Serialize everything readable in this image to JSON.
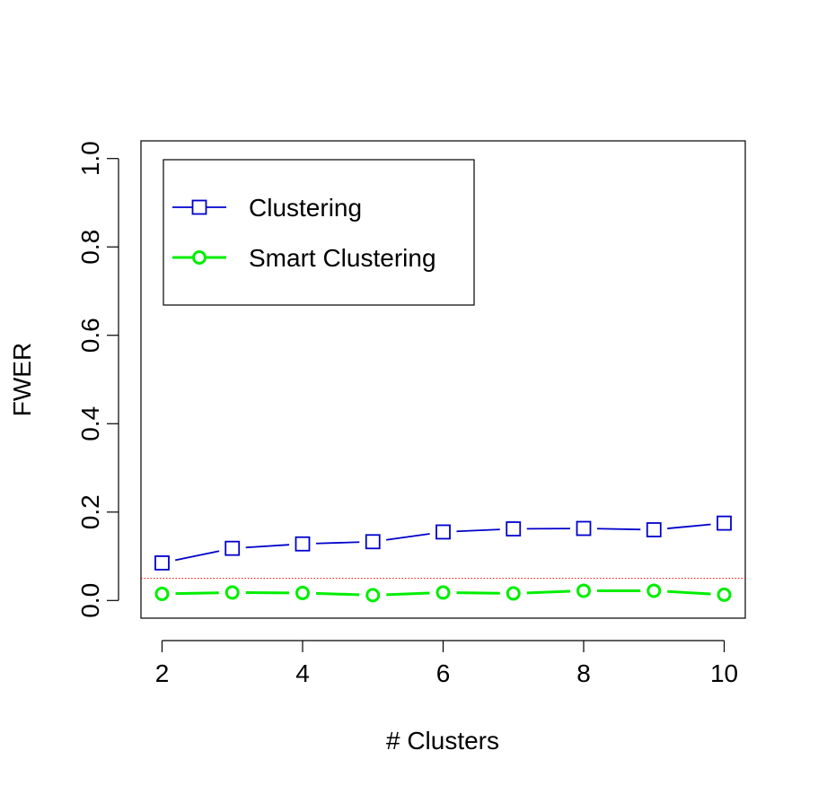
{
  "chart_data": {
    "type": "line",
    "title": "",
    "xlabel": "# Clusters",
    "ylabel": "FWER",
    "xlim": [
      1.7,
      10.3
    ],
    "ylim": [
      -0.04,
      1.04
    ],
    "x_ticks": [
      "2",
      "4",
      "6",
      "8",
      "10"
    ],
    "y_ticks": [
      "0.0",
      "0.2",
      "0.4",
      "0.6",
      "0.8",
      "1.0"
    ],
    "x": [
      2,
      3,
      4,
      5,
      6,
      7,
      8,
      9,
      10
    ],
    "series": [
      {
        "name": "Clustering",
        "color": "#0000cc",
        "marker": "square",
        "values": [
          0.085,
          0.118,
          0.128,
          0.133,
          0.155,
          0.162,
          0.163,
          0.16,
          0.175
        ]
      },
      {
        "name": "Smart Clustering",
        "color": "#00ee00",
        "marker": "circle",
        "values": [
          0.015,
          0.018,
          0.017,
          0.012,
          0.018,
          0.016,
          0.022,
          0.022,
          0.013
        ]
      }
    ],
    "reference_line": {
      "y": 0.05,
      "color": "#ff0000",
      "style": "dotted"
    },
    "grid": false,
    "legend_position": "top-left"
  }
}
